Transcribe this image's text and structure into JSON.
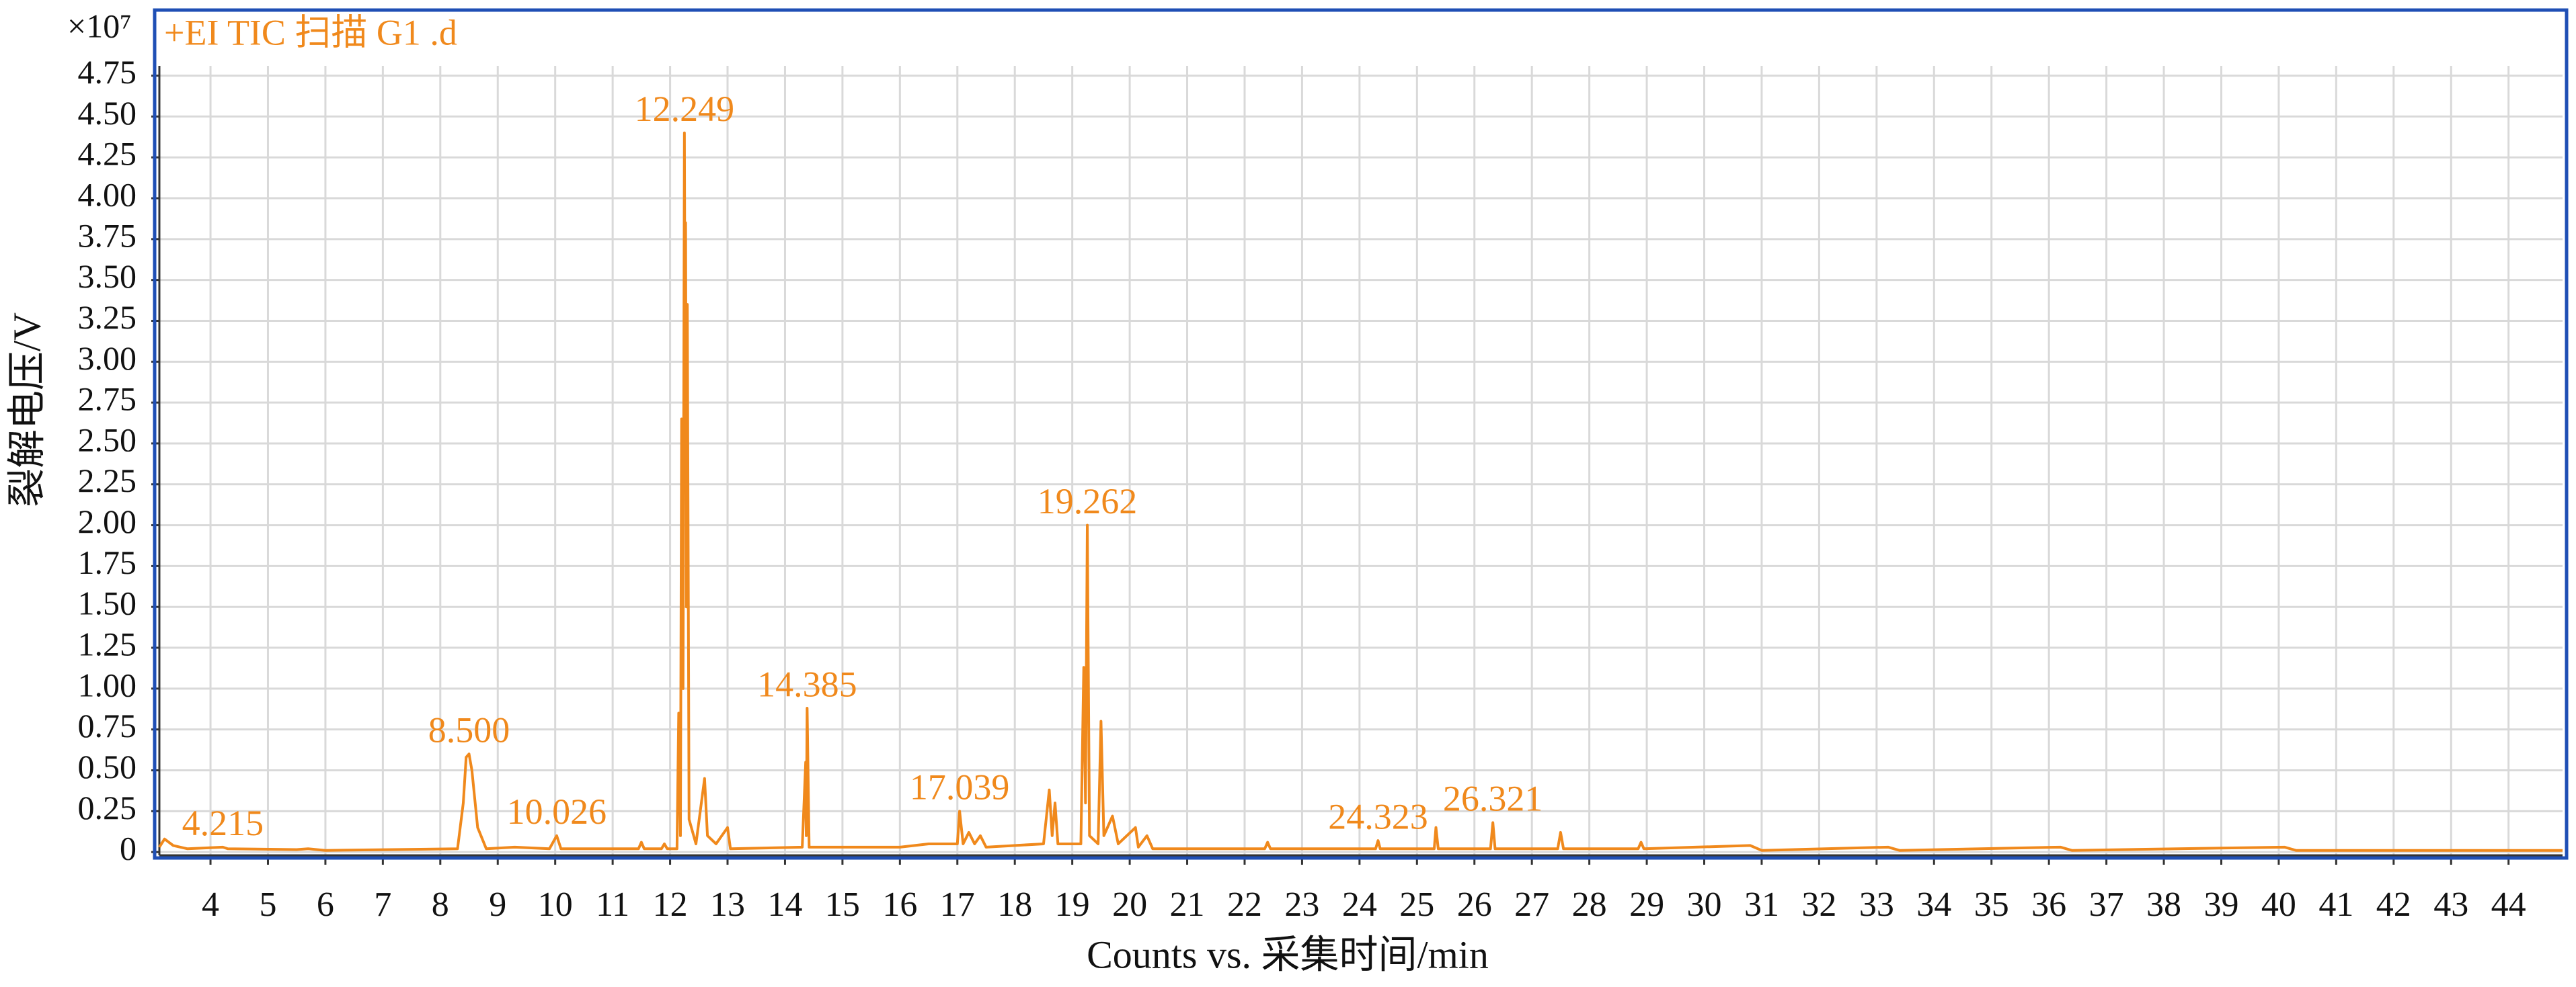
{
  "chart_data": {
    "type": "line",
    "title": "+EI TIC 扫描 G1 .d",
    "y_scale_label": "×10⁷",
    "x_label": "Counts vs. 采集时间/min",
    "y_label": "裂解电压/V",
    "grid": true,
    "xlim": [
      3.11,
      44.94
    ],
    "ylim": [
      -0.02,
      4.81
    ],
    "xticks": [
      4,
      5,
      6,
      7,
      8,
      9,
      10,
      11,
      12,
      13,
      14,
      15,
      16,
      17,
      18,
      19,
      20,
      21,
      22,
      23,
      24,
      25,
      26,
      27,
      28,
      29,
      30,
      31,
      32,
      33,
      34,
      35,
      36,
      37,
      38,
      39,
      40,
      41,
      42,
      43,
      44
    ],
    "yticks": [
      0,
      0.25,
      {
        "value": 0.5,
        "label": "0.50"
      },
      0.75,
      {
        "value": 1,
        "label": "1.00"
      },
      1.25,
      {
        "value": 1.5,
        "label": "1.50"
      },
      1.75,
      {
        "value": 2,
        "label": "2.00"
      },
      2.25,
      {
        "value": 2.5,
        "label": "2.50"
      },
      2.75,
      {
        "value": 3,
        "label": "3.00"
      },
      3.25,
      {
        "value": 3.5,
        "label": "3.50"
      },
      3.75,
      {
        "value": 4,
        "label": "4.00"
      },
      4.25,
      {
        "value": 4.5,
        "label": "4.50"
      },
      4.75
    ],
    "x": [
      3.11,
      3.2,
      3.35,
      3.6,
      4.215,
      4.3,
      5.5,
      5.7,
      6.0,
      8.3,
      8.4,
      8.45,
      8.5,
      8.55,
      8.65,
      8.8,
      9.3,
      9.9,
      10.026,
      10.1,
      11.45,
      11.5,
      11.55,
      11.85,
      11.9,
      11.95,
      12.12,
      12.15,
      12.18,
      12.2,
      12.225,
      12.249,
      12.26,
      12.27,
      12.285,
      12.3,
      12.33,
      12.45,
      12.6,
      12.65,
      12.8,
      13.0,
      13.05,
      14.3,
      14.36,
      14.37,
      14.385,
      14.42,
      16.0,
      16.5,
      17.0,
      17.039,
      17.1,
      17.2,
      17.3,
      17.4,
      17.5,
      18.5,
      18.6,
      18.65,
      18.7,
      18.75,
      19.15,
      19.2,
      19.23,
      19.262,
      19.3,
      19.45,
      19.5,
      19.55,
      19.7,
      19.8,
      20.1,
      20.15,
      20.3,
      20.4,
      22.35,
      22.4,
      22.45,
      24.28,
      24.323,
      24.36,
      25.3,
      25.33,
      25.37,
      26.28,
      26.321,
      26.36,
      27.45,
      27.5,
      27.55,
      28.85,
      28.9,
      28.95,
      30.8,
      31.0,
      33.2,
      33.4,
      36.2,
      36.4,
      40.1,
      40.3,
      44.94
    ],
    "series": [
      {
        "name": "+EI TIC",
        "color": "#f0891c",
        "values": [
          0.03,
          0.08,
          0.04,
          0.02,
          0.03,
          0.02,
          0.015,
          0.02,
          0.01,
          0.02,
          0.3,
          0.58,
          0.6,
          0.5,
          0.15,
          0.02,
          0.03,
          0.02,
          0.1,
          0.02,
          0.02,
          0.06,
          0.02,
          0.02,
          0.05,
          0.02,
          0.02,
          0.85,
          0.1,
          2.65,
          1.0,
          4.4,
          3.0,
          3.85,
          1.5,
          3.35,
          0.2,
          0.05,
          0.45,
          0.1,
          0.05,
          0.15,
          0.02,
          0.03,
          0.55,
          0.1,
          0.88,
          0.03,
          0.03,
          0.05,
          0.05,
          0.25,
          0.05,
          0.12,
          0.05,
          0.1,
          0.03,
          0.05,
          0.38,
          0.1,
          0.3,
          0.05,
          0.05,
          1.13,
          0.3,
          2.0,
          0.1,
          0.05,
          0.8,
          0.1,
          0.22,
          0.05,
          0.15,
          0.03,
          0.1,
          0.02,
          0.02,
          0.06,
          0.02,
          0.02,
          0.07,
          0.02,
          0.02,
          0.15,
          0.02,
          0.02,
          0.18,
          0.02,
          0.02,
          0.12,
          0.02,
          0.02,
          0.06,
          0.02,
          0.04,
          0.01,
          0.03,
          0.01,
          0.03,
          0.01,
          0.03,
          0.01,
          0.01
        ]
      }
    ],
    "annotations": [
      4.215,
      {
        "value": 8.5,
        "label": "8.500"
      },
      10.026,
      12.249,
      14.385,
      17.039,
      19.262,
      24.323,
      26.321
    ]
  }
}
